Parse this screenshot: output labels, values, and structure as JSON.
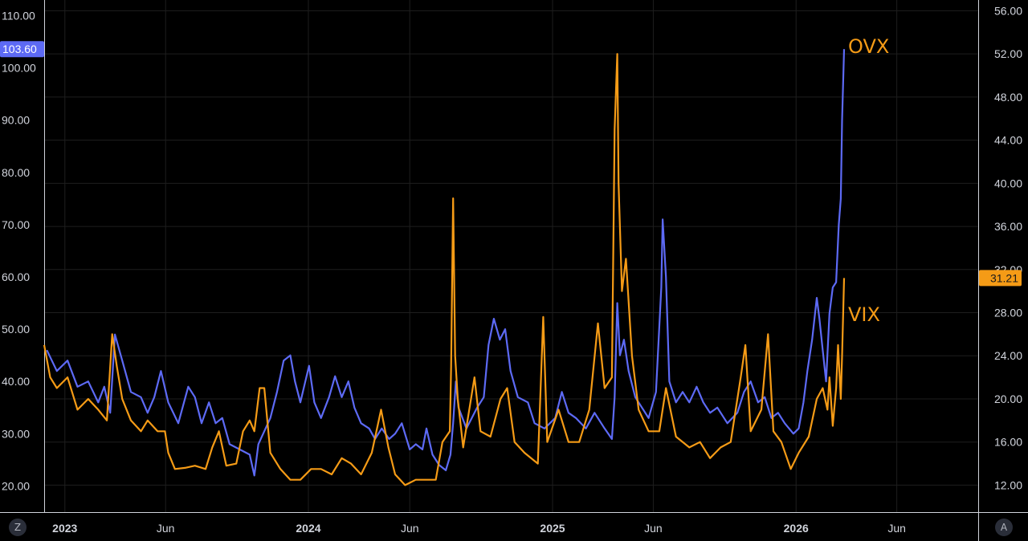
{
  "chart_data": {
    "type": "line",
    "title": "",
    "x_range": [
      "2022-12-01",
      "2026-10-01"
    ],
    "x_ticks": [
      {
        "label": "2023",
        "date": "2023-01-01",
        "bold": true
      },
      {
        "label": "Jun",
        "date": "2023-06-01",
        "bold": false
      },
      {
        "label": "2024",
        "date": "2024-01-01",
        "bold": true
      },
      {
        "label": "Jun",
        "date": "2024-06-01",
        "bold": false
      },
      {
        "label": "2025",
        "date": "2025-01-01",
        "bold": true
      },
      {
        "label": "Jun",
        "date": "2025-06-01",
        "bold": false
      },
      {
        "label": "2026",
        "date": "2026-01-01",
        "bold": true
      },
      {
        "label": "Jun",
        "date": "2026-06-01",
        "bold": false
      }
    ],
    "left_axis": {
      "ticks": [
        "20.00",
        "30.00",
        "40.00",
        "50.00",
        "60.00",
        "70.00",
        "80.00",
        "90.00",
        "100.00",
        "110.00"
      ],
      "range": [
        15,
        113
      ]
    },
    "right_axis": {
      "ticks": [
        "12.00",
        "16.00",
        "20.00",
        "24.00",
        "28.00",
        "32.00",
        "36.00",
        "40.00",
        "44.00",
        "48.00",
        "52.00",
        "56.00"
      ],
      "range": [
        9.5,
        57
      ]
    },
    "grid": true,
    "series": [
      {
        "name": "OVX",
        "axis": "left",
        "color": "#5d6af5",
        "last_value": "103.60",
        "points": [
          [
            "2022-12-05",
            46
          ],
          [
            "2022-12-20",
            42
          ],
          [
            "2023-01-05",
            44
          ],
          [
            "2023-01-20",
            39
          ],
          [
            "2023-02-05",
            40
          ],
          [
            "2023-02-20",
            36
          ],
          [
            "2023-03-01",
            39
          ],
          [
            "2023-03-10",
            34
          ],
          [
            "2023-03-17",
            49
          ],
          [
            "2023-03-28",
            44
          ],
          [
            "2023-04-10",
            38
          ],
          [
            "2023-04-25",
            37
          ],
          [
            "2023-05-05",
            34
          ],
          [
            "2023-05-15",
            37
          ],
          [
            "2023-05-25",
            42
          ],
          [
            "2023-06-05",
            36
          ],
          [
            "2023-06-20",
            32
          ],
          [
            "2023-07-05",
            39
          ],
          [
            "2023-07-15",
            37
          ],
          [
            "2023-07-25",
            32
          ],
          [
            "2023-08-05",
            36
          ],
          [
            "2023-08-15",
            32
          ],
          [
            "2023-08-25",
            33
          ],
          [
            "2023-09-05",
            28
          ],
          [
            "2023-09-20",
            27
          ],
          [
            "2023-10-05",
            26
          ],
          [
            "2023-10-12",
            22
          ],
          [
            "2023-10-18",
            28
          ],
          [
            "2023-11-05",
            33
          ],
          [
            "2023-11-15",
            38
          ],
          [
            "2023-11-25",
            44
          ],
          [
            "2023-12-05",
            45
          ],
          [
            "2023-12-12",
            40
          ],
          [
            "2023-12-20",
            36
          ],
          [
            "2024-01-02",
            43
          ],
          [
            "2024-01-10",
            36
          ],
          [
            "2024-01-20",
            33
          ],
          [
            "2024-02-01",
            37
          ],
          [
            "2024-02-10",
            41
          ],
          [
            "2024-02-20",
            37
          ],
          [
            "2024-03-01",
            40
          ],
          [
            "2024-03-10",
            35
          ],
          [
            "2024-03-20",
            32
          ],
          [
            "2024-04-01",
            31
          ],
          [
            "2024-04-10",
            29
          ],
          [
            "2024-04-20",
            31
          ],
          [
            "2024-05-01",
            29
          ],
          [
            "2024-05-10",
            30
          ],
          [
            "2024-05-20",
            32
          ],
          [
            "2024-06-01",
            27
          ],
          [
            "2024-06-10",
            28
          ],
          [
            "2024-06-20",
            27
          ],
          [
            "2024-06-26",
            31
          ],
          [
            "2024-07-05",
            26
          ],
          [
            "2024-07-15",
            24
          ],
          [
            "2024-07-25",
            23
          ],
          [
            "2024-08-01",
            26
          ],
          [
            "2024-08-05",
            32
          ],
          [
            "2024-08-09",
            40
          ],
          [
            "2024-08-13",
            35
          ],
          [
            "2024-08-25",
            31
          ],
          [
            "2024-09-10",
            35
          ],
          [
            "2024-09-20",
            37
          ],
          [
            "2024-09-27",
            47
          ],
          [
            "2024-10-05",
            52
          ],
          [
            "2024-10-14",
            48
          ],
          [
            "2024-10-22",
            50
          ],
          [
            "2024-10-30",
            42
          ],
          [
            "2024-11-10",
            37
          ],
          [
            "2024-11-25",
            36
          ],
          [
            "2024-12-05",
            32
          ],
          [
            "2024-12-20",
            31
          ],
          [
            "2025-01-05",
            33
          ],
          [
            "2025-01-15",
            38
          ],
          [
            "2025-01-25",
            34
          ],
          [
            "2025-02-05",
            33
          ],
          [
            "2025-02-20",
            31
          ],
          [
            "2025-03-05",
            34
          ],
          [
            "2025-03-20",
            31
          ],
          [
            "2025-03-31",
            29
          ],
          [
            "2025-04-04",
            37
          ],
          [
            "2025-04-08",
            55
          ],
          [
            "2025-04-12",
            45
          ],
          [
            "2025-04-18",
            48
          ],
          [
            "2025-04-25",
            42
          ],
          [
            "2025-05-05",
            37
          ],
          [
            "2025-05-15",
            35
          ],
          [
            "2025-05-25",
            33
          ],
          [
            "2025-06-05",
            38
          ],
          [
            "2025-06-13",
            58
          ],
          [
            "2025-06-15",
            71
          ],
          [
            "2025-06-20",
            60
          ],
          [
            "2025-06-25",
            40
          ],
          [
            "2025-07-05",
            36
          ],
          [
            "2025-07-15",
            38
          ],
          [
            "2025-07-25",
            36
          ],
          [
            "2025-08-05",
            39
          ],
          [
            "2025-08-15",
            36
          ],
          [
            "2025-08-25",
            34
          ],
          [
            "2025-09-05",
            35
          ],
          [
            "2025-09-20",
            32
          ],
          [
            "2025-10-05",
            34
          ],
          [
            "2025-10-15",
            38
          ],
          [
            "2025-10-25",
            40
          ],
          [
            "2025-11-05",
            36
          ],
          [
            "2025-11-15",
            37
          ],
          [
            "2025-11-25",
            33
          ],
          [
            "2025-12-05",
            34
          ],
          [
            "2025-12-15",
            32
          ],
          [
            "2025-12-28",
            30
          ],
          [
            "2026-01-05",
            31
          ],
          [
            "2026-01-12",
            36
          ],
          [
            "2026-01-18",
            42
          ],
          [
            "2026-01-25",
            48
          ],
          [
            "2026-02-01",
            56
          ],
          [
            "2026-02-05",
            52
          ],
          [
            "2026-02-10",
            46
          ],
          [
            "2026-02-15",
            40
          ],
          [
            "2026-02-20",
            53
          ],
          [
            "2026-02-25",
            58
          ],
          [
            "2026-03-02",
            59
          ],
          [
            "2026-03-06",
            70
          ],
          [
            "2026-03-09",
            75
          ],
          [
            "2026-03-11",
            90
          ],
          [
            "2026-03-14",
            103.6
          ]
        ]
      },
      {
        "name": "VIX",
        "axis": "right",
        "color": "#f59b16",
        "last_value": "31.21",
        "points": [
          [
            "2022-12-01",
            25
          ],
          [
            "2022-12-10",
            22
          ],
          [
            "2022-12-20",
            21
          ],
          [
            "2023-01-05",
            22
          ],
          [
            "2023-01-20",
            19
          ],
          [
            "2023-02-05",
            20
          ],
          [
            "2023-02-20",
            19
          ],
          [
            "2023-03-05",
            18
          ],
          [
            "2023-03-13",
            26
          ],
          [
            "2023-03-20",
            23
          ],
          [
            "2023-03-28",
            20
          ],
          [
            "2023-04-10",
            18
          ],
          [
            "2023-04-25",
            17
          ],
          [
            "2023-05-05",
            18
          ],
          [
            "2023-05-20",
            17
          ],
          [
            "2023-05-31",
            17
          ],
          [
            "2023-06-05",
            15
          ],
          [
            "2023-06-15",
            13.5
          ],
          [
            "2023-06-30",
            13.6
          ],
          [
            "2023-07-15",
            13.8
          ],
          [
            "2023-07-31",
            13.5
          ],
          [
            "2023-08-10",
            15.5
          ],
          [
            "2023-08-20",
            17
          ],
          [
            "2023-08-31",
            13.8
          ],
          [
            "2023-09-15",
            14
          ],
          [
            "2023-09-25",
            17
          ],
          [
            "2023-10-05",
            18
          ],
          [
            "2023-10-12",
            17
          ],
          [
            "2023-10-20",
            21
          ],
          [
            "2023-10-27",
            21
          ],
          [
            "2023-11-05",
            15
          ],
          [
            "2023-11-20",
            13.5
          ],
          [
            "2023-12-05",
            12.5
          ],
          [
            "2023-12-20",
            12.5
          ],
          [
            "2024-01-05",
            13.5
          ],
          [
            "2024-01-20",
            13.5
          ],
          [
            "2024-02-05",
            13
          ],
          [
            "2024-02-20",
            14.5
          ],
          [
            "2024-03-05",
            14
          ],
          [
            "2024-03-20",
            13
          ],
          [
            "2024-04-05",
            15
          ],
          [
            "2024-04-19",
            19
          ],
          [
            "2024-04-30",
            15.5
          ],
          [
            "2024-05-10",
            13
          ],
          [
            "2024-05-25",
            12
          ],
          [
            "2024-06-10",
            12.5
          ],
          [
            "2024-06-25",
            12.5
          ],
          [
            "2024-07-10",
            12.5
          ],
          [
            "2024-07-20",
            16
          ],
          [
            "2024-07-31",
            17
          ],
          [
            "2024-08-02",
            23
          ],
          [
            "2024-08-05",
            38.6
          ],
          [
            "2024-08-08",
            24
          ],
          [
            "2024-08-12",
            20
          ],
          [
            "2024-08-20",
            15.5
          ],
          [
            "2024-09-06",
            22
          ],
          [
            "2024-09-15",
            17
          ],
          [
            "2024-09-30",
            16.5
          ],
          [
            "2024-10-15",
            20
          ],
          [
            "2024-10-25",
            21
          ],
          [
            "2024-11-05",
            16
          ],
          [
            "2024-11-20",
            15
          ],
          [
            "2024-12-10",
            14
          ],
          [
            "2024-12-18",
            27.6
          ],
          [
            "2024-12-24",
            16
          ],
          [
            "2025-01-10",
            19
          ],
          [
            "2025-01-25",
            16
          ],
          [
            "2025-02-10",
            16
          ],
          [
            "2025-02-25",
            19
          ],
          [
            "2025-03-10",
            27
          ],
          [
            "2025-03-20",
            21
          ],
          [
            "2025-03-31",
            22
          ],
          [
            "2025-04-04",
            45
          ],
          [
            "2025-04-08",
            52
          ],
          [
            "2025-04-10",
            40
          ],
          [
            "2025-04-15",
            30
          ],
          [
            "2025-04-21",
            33
          ],
          [
            "2025-04-30",
            24
          ],
          [
            "2025-05-10",
            19
          ],
          [
            "2025-05-25",
            17
          ],
          [
            "2025-06-10",
            17
          ],
          [
            "2025-06-20",
            21
          ],
          [
            "2025-07-05",
            16.5
          ],
          [
            "2025-07-25",
            15.5
          ],
          [
            "2025-08-10",
            16
          ],
          [
            "2025-08-25",
            14.5
          ],
          [
            "2025-09-10",
            15.5
          ],
          [
            "2025-09-25",
            16
          ],
          [
            "2025-10-10",
            22
          ],
          [
            "2025-10-17",
            25
          ],
          [
            "2025-10-25",
            17
          ],
          [
            "2025-11-10",
            19
          ],
          [
            "2025-11-20",
            26
          ],
          [
            "2025-11-28",
            17
          ],
          [
            "2025-12-10",
            16
          ],
          [
            "2025-12-24",
            13.5
          ],
          [
            "2026-01-05",
            15
          ],
          [
            "2026-01-20",
            16.5
          ],
          [
            "2026-02-01",
            20
          ],
          [
            "2026-02-10",
            21
          ],
          [
            "2026-02-17",
            19
          ],
          [
            "2026-02-20",
            22
          ],
          [
            "2026-02-25",
            17.5
          ],
          [
            "2026-03-02",
            21
          ],
          [
            "2026-03-05",
            25
          ],
          [
            "2026-03-09",
            20
          ],
          [
            "2026-03-11",
            24
          ],
          [
            "2026-03-14",
            31.21
          ]
        ]
      }
    ],
    "annotations": [
      {
        "text": "OVX",
        "color": "#f59b16"
      },
      {
        "text": "VIX",
        "color": "#f59b16"
      }
    ]
  },
  "corner_buttons": {
    "left": "Z",
    "right": "A"
  }
}
